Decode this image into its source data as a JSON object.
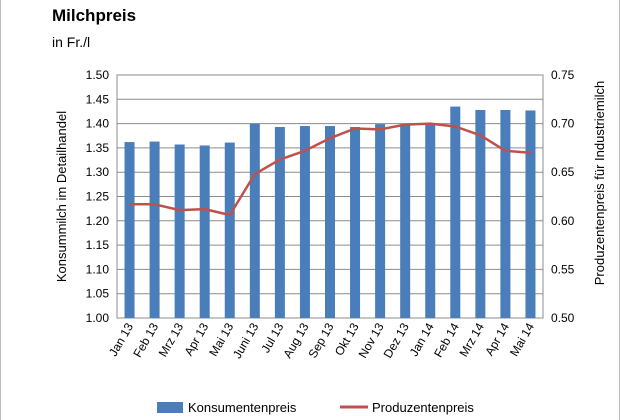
{
  "chart_data": {
    "type": "bar",
    "title": "Milchpreis",
    "subtitle": "in Fr./l",
    "ylabel": "Konsummilch im Detailhandel",
    "y2label": "Produzentenpreis für Industriemilch",
    "ylim": [
      1.0,
      1.5
    ],
    "y2lim": [
      0.5,
      0.75
    ],
    "yticks": [
      "1.00",
      "1.05",
      "1.10",
      "1.15",
      "1.20",
      "1.25",
      "1.30",
      "1.35",
      "1.40",
      "1.45",
      "1.50"
    ],
    "y2ticks": [
      "0.50",
      "0.55",
      "0.60",
      "0.65",
      "0.70",
      "0.75"
    ],
    "grid": true,
    "legend_position": "bottom",
    "categories": [
      "Jan 13",
      "Feb 13",
      "Mrz 13",
      "Apr 13",
      "Mai 13",
      "Juni 13",
      "Jul 13",
      "Aug 13",
      "Sep 13",
      "Okt 13",
      "Nov 13",
      "Dez 13",
      "Jan 14",
      "Feb 14",
      "Mrz 14",
      "Apr 14",
      "Mai 14"
    ],
    "series": [
      {
        "name": "Konsumentenpreis",
        "type": "bar",
        "axis": "left",
        "color": "#4a7ebb",
        "values": [
          1.362,
          1.363,
          1.357,
          1.355,
          1.361,
          1.4,
          1.393,
          1.395,
          1.395,
          1.393,
          1.399,
          1.399,
          1.4,
          1.435,
          1.428,
          1.428,
          1.427
        ]
      },
      {
        "name": "Produzentenpreis",
        "type": "line",
        "axis": "right",
        "color": "#c0504d",
        "values": [
          0.617,
          0.617,
          0.611,
          0.612,
          0.606,
          0.648,
          0.663,
          0.672,
          0.685,
          0.695,
          0.694,
          0.699,
          0.7,
          0.697,
          0.688,
          0.672,
          0.67
        ]
      }
    ]
  }
}
